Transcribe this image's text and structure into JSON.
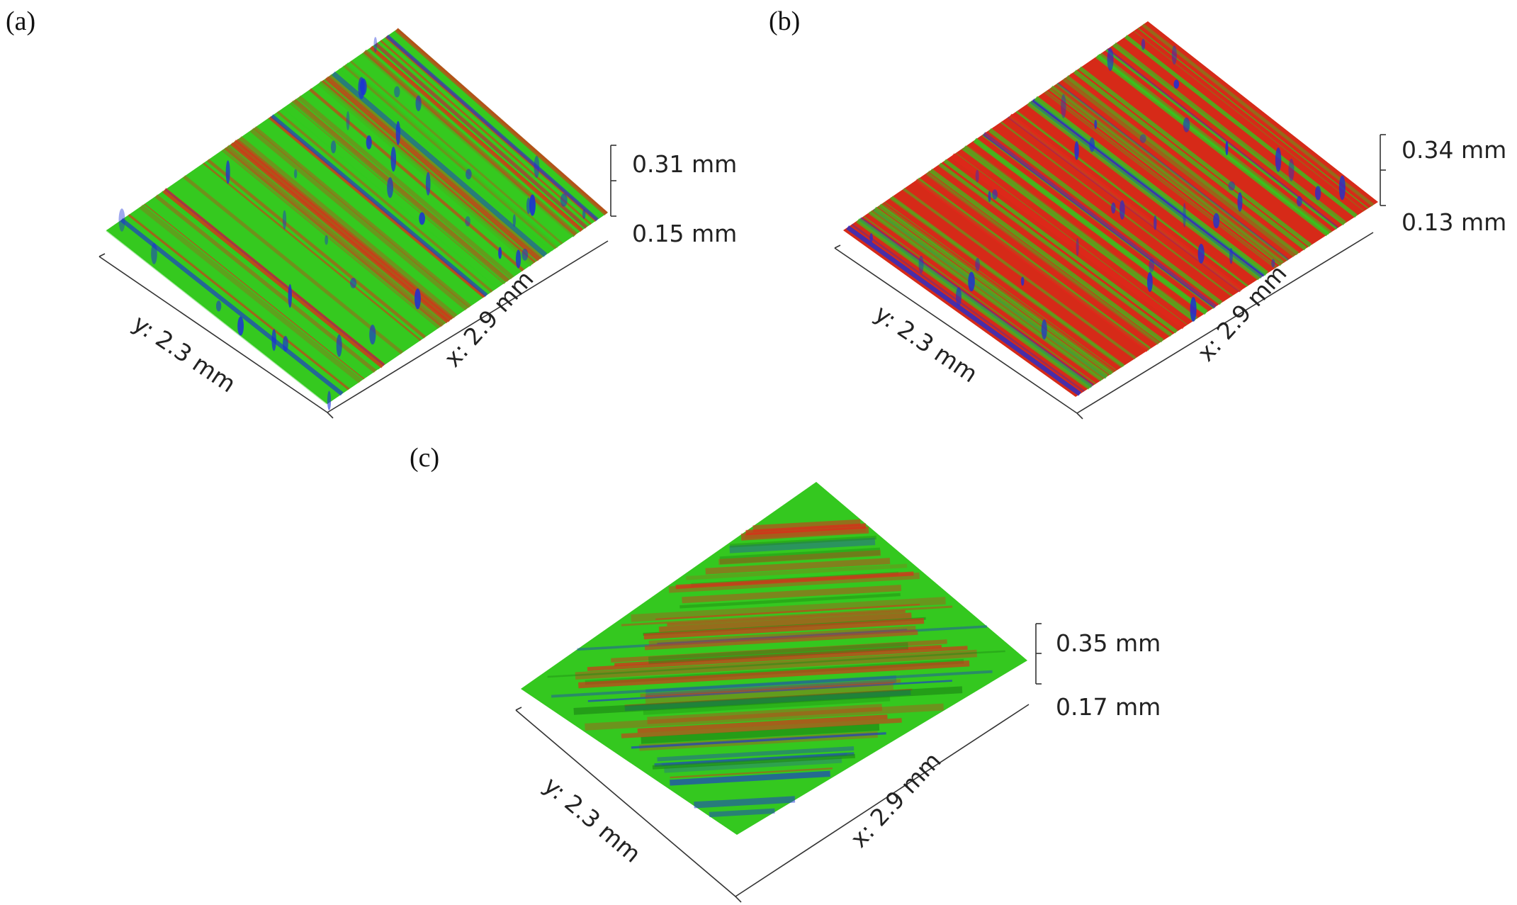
{
  "panels": [
    {
      "id": "a",
      "label": "(a)",
      "y_label": "y: 2.3 mm",
      "x_label": "x: 2.9 mm",
      "z_top": "0.31 mm",
      "z_bottom": "0.15 mm",
      "dominant_color": "#2ecc1e",
      "streak_color": "#d93018",
      "peak_color": "#1a2fd8",
      "texture": "vertical-streaks"
    },
    {
      "id": "b",
      "label": "(b)",
      "y_label": "y: 2.3 mm",
      "x_label": "x: 2.9 mm",
      "z_top": "0.34 mm",
      "z_bottom": "0.13 mm",
      "dominant_color": "#e0281a",
      "streak_color": "#32c81e",
      "peak_color": "#1a2fd8",
      "texture": "vertical-streaks"
    },
    {
      "id": "c",
      "label": "(c)",
      "y_label": "y: 2.3 mm",
      "x_label": "x: 2.9 mm",
      "z_top": "0.35 mm",
      "z_bottom": "0.17 mm",
      "dominant_color": "#2ecc1e",
      "streak_color": "#e0281a",
      "peak_color": "#1a2fd8",
      "texture": "horizontal-bands"
    }
  ]
}
